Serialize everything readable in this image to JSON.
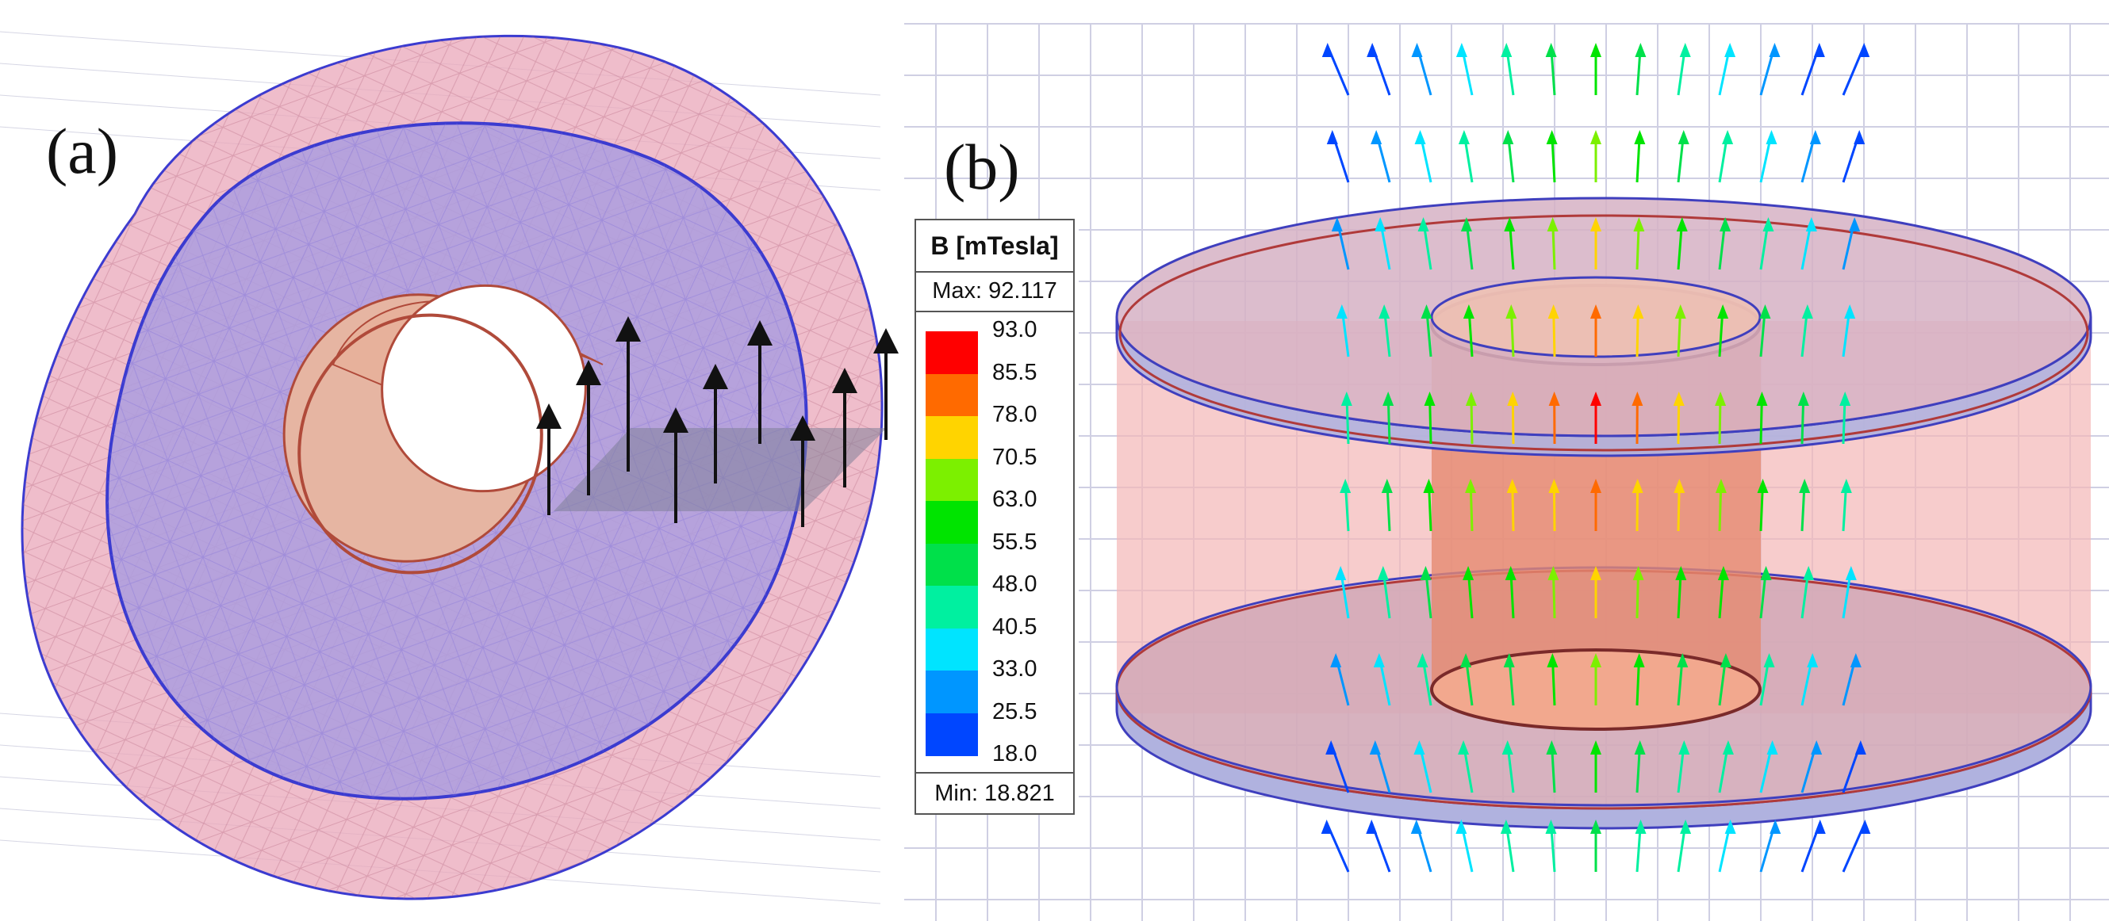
{
  "panels": {
    "a": {
      "label": "(a)"
    },
    "b": {
      "label": "(b)"
    }
  },
  "legend": {
    "title": "B [mTesla]",
    "max_label": "Max: 92.117",
    "min_label": "Min: 18.821",
    "scale": [
      {
        "value": "93.0",
        "color": "#ff0000"
      },
      {
        "value": "85.5",
        "color": "#ff6a00"
      },
      {
        "value": "78.0",
        "color": "#ffd400"
      },
      {
        "value": "70.5",
        "color": "#7cf000"
      },
      {
        "value": "63.0",
        "color": "#00e400"
      },
      {
        "value": "55.5",
        "color": "#00e04a"
      },
      {
        "value": "48.0",
        "color": "#00f0a0"
      },
      {
        "value": "40.5",
        "color": "#00e4ff"
      },
      {
        "value": "33.0",
        "color": "#0096ff"
      },
      {
        "value": "25.5",
        "color": "#0046ff"
      },
      {
        "value": "18.0",
        "color": "#0000ff"
      }
    ]
  },
  "colors": {
    "ring_pink": "#e8a3b6",
    "ring_purple": "#a89adf",
    "grid": "#c8c8e0",
    "arrow_black": "#111111"
  }
}
